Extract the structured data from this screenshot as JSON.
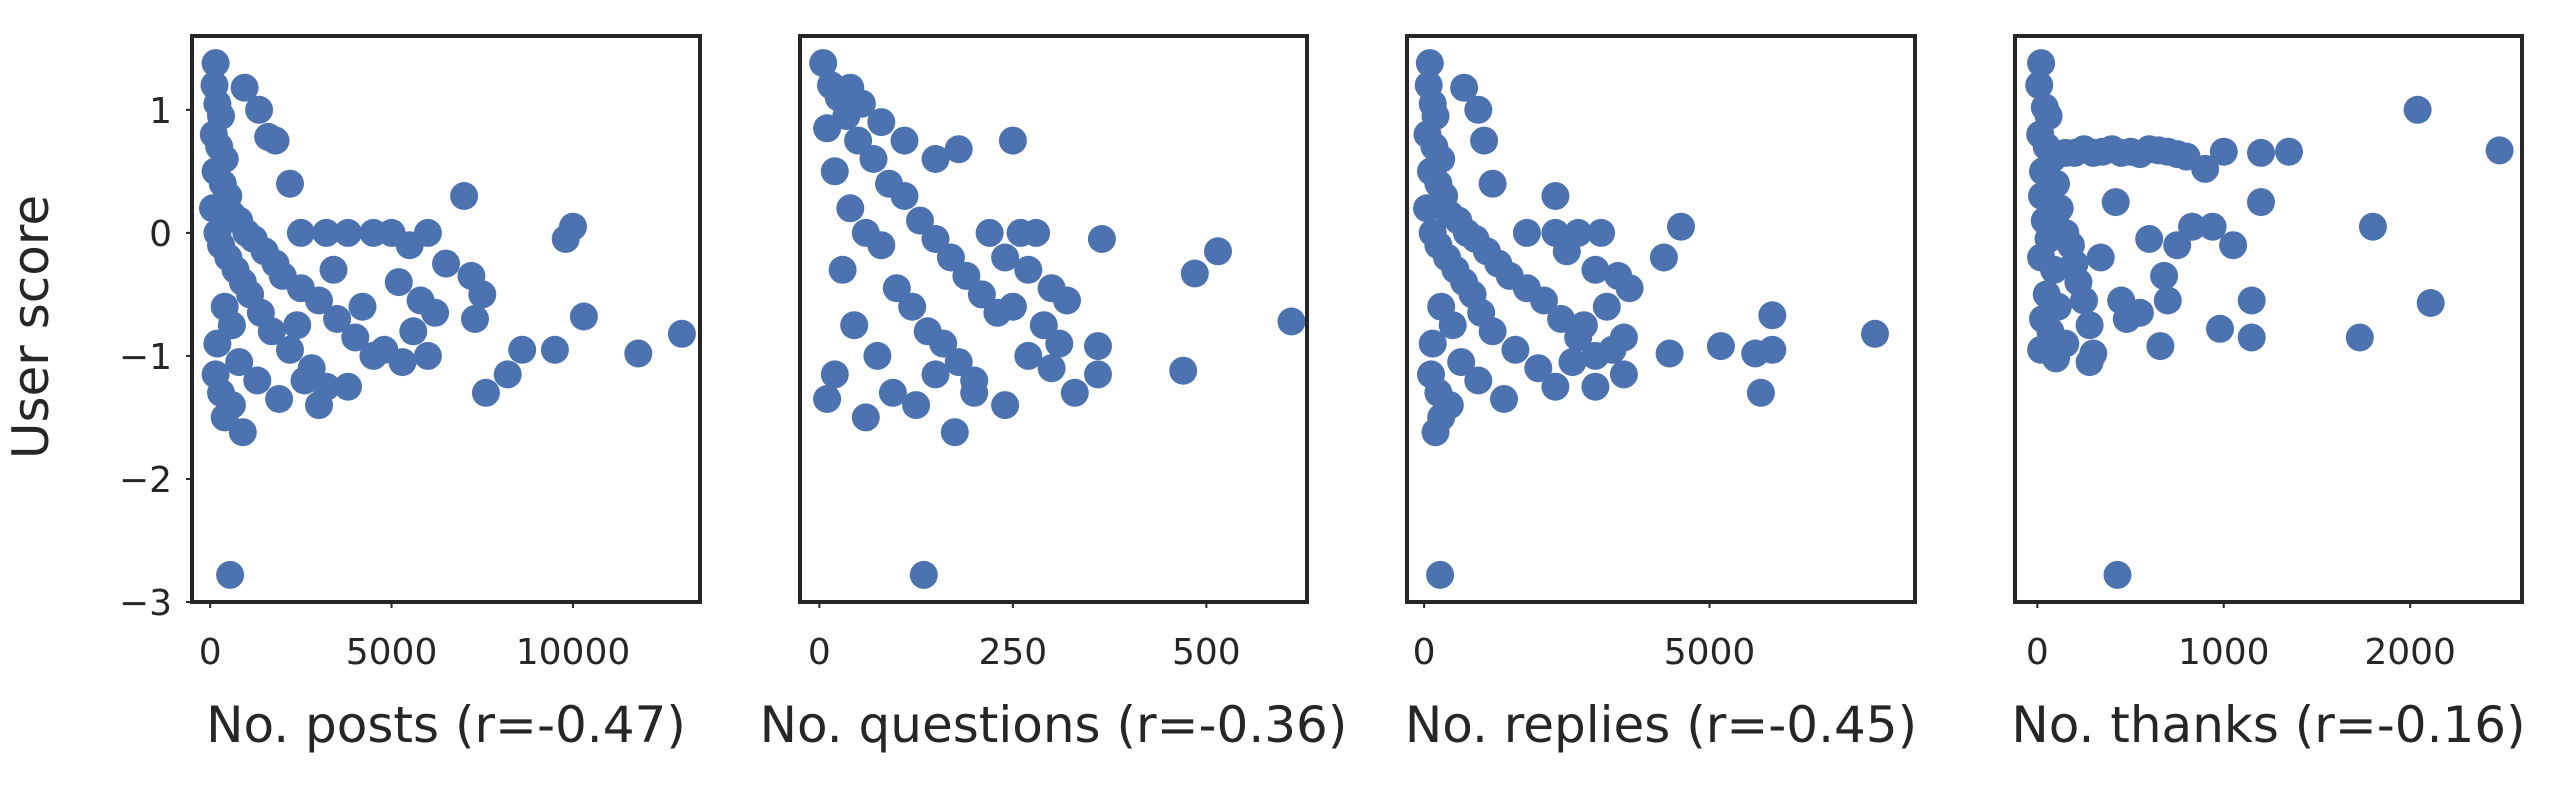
{
  "figure": {
    "ylabel": "User score"
  },
  "chart_data": [
    {
      "type": "scatter",
      "xlabel": "No. posts (r=-0.47)",
      "ylabel": "User score",
      "xlim": [
        -500,
        13500
      ],
      "ylim": [
        -3.0,
        1.6
      ],
      "xticks": [
        0,
        5000,
        10000
      ],
      "xticklabels": [
        "0",
        "5000",
        "10000"
      ],
      "yticks": [
        1,
        0,
        -1,
        -2,
        -3
      ],
      "yticklabels": [
        "1",
        "0",
        "−1",
        "−2",
        "−3"
      ],
      "grid": false,
      "color": "#4c72b0",
      "points": [
        [
          150,
          1.38
        ],
        [
          120,
          1.2
        ],
        [
          200,
          1.05
        ],
        [
          300,
          0.95
        ],
        [
          100,
          0.8
        ],
        [
          250,
          0.7
        ],
        [
          400,
          0.6
        ],
        [
          150,
          0.5
        ],
        [
          350,
          0.4
        ],
        [
          500,
          0.3
        ],
        [
          80,
          0.2
        ],
        [
          600,
          0.15
        ],
        [
          800,
          0.1
        ],
        [
          200,
          0.0
        ],
        [
          1000,
          0.0
        ],
        [
          1200,
          -0.05
        ],
        [
          300,
          -0.1
        ],
        [
          1500,
          -0.15
        ],
        [
          500,
          -0.2
        ],
        [
          1800,
          -0.25
        ],
        [
          700,
          -0.3
        ],
        [
          2000,
          -0.35
        ],
        [
          900,
          -0.4
        ],
        [
          2500,
          -0.45
        ],
        [
          1100,
          -0.5
        ],
        [
          3000,
          -0.55
        ],
        [
          400,
          -0.6
        ],
        [
          1400,
          -0.65
        ],
        [
          3500,
          -0.7
        ],
        [
          600,
          -0.75
        ],
        [
          1700,
          -0.8
        ],
        [
          4000,
          -0.85
        ],
        [
          200,
          -0.9
        ],
        [
          2200,
          -0.95
        ],
        [
          4500,
          -1.0
        ],
        [
          800,
          -1.05
        ],
        [
          2800,
          -1.1
        ],
        [
          150,
          -1.15
        ],
        [
          1300,
          -1.2
        ],
        [
          3200,
          -1.25
        ],
        [
          300,
          -1.3
        ],
        [
          1900,
          -1.35
        ],
        [
          600,
          -1.4
        ],
        [
          400,
          -1.5
        ],
        [
          900,
          -1.62
        ],
        [
          550,
          -2.78
        ],
        [
          950,
          1.18
        ],
        [
          1350,
          1.0
        ],
        [
          1600,
          0.78
        ],
        [
          1800,
          0.75
        ],
        [
          2200,
          0.4
        ],
        [
          2500,
          0.0
        ],
        [
          3200,
          0.0
        ],
        [
          3800,
          0.0
        ],
        [
          4500,
          0.0
        ],
        [
          5000,
          0.0
        ],
        [
          6000,
          0.0
        ],
        [
          7000,
          0.3
        ],
        [
          5500,
          -0.1
        ],
        [
          6500,
          -0.25
        ],
        [
          7200,
          -0.35
        ],
        [
          5200,
          -0.4
        ],
        [
          5800,
          -0.55
        ],
        [
          7500,
          -0.5
        ],
        [
          7300,
          -0.7
        ],
        [
          6200,
          -0.65
        ],
        [
          5600,
          -0.8
        ],
        [
          4800,
          -0.95
        ],
        [
          5300,
          -1.05
        ],
        [
          6000,
          -1.0
        ],
        [
          7600,
          -1.3
        ],
        [
          8200,
          -1.15
        ],
        [
          8600,
          -0.95
        ],
        [
          9500,
          -0.95
        ],
        [
          9800,
          -0.05
        ],
        [
          10000,
          0.05
        ],
        [
          10300,
          -0.68
        ],
        [
          11800,
          -0.98
        ],
        [
          13000,
          -0.82
        ],
        [
          3000,
          -1.4
        ],
        [
          3800,
          -1.25
        ],
        [
          2600,
          -1.2
        ],
        [
          4200,
          -0.6
        ],
        [
          3400,
          -0.3
        ],
        [
          2400,
          -0.75
        ]
      ]
    },
    {
      "type": "scatter",
      "xlabel": "No. questions (r=-0.36)",
      "xlim": [
        -25,
        630
      ],
      "ylim": [
        -3.0,
        1.6
      ],
      "xticks": [
        0,
        250,
        500
      ],
      "xticklabels": [
        "0",
        "250",
        "500"
      ],
      "grid": false,
      "color": "#4c72b0",
      "points": [
        [
          5,
          1.38
        ],
        [
          15,
          1.2
        ],
        [
          25,
          1.1
        ],
        [
          35,
          0.95
        ],
        [
          10,
          0.85
        ],
        [
          50,
          0.75
        ],
        [
          70,
          0.6
        ],
        [
          20,
          0.5
        ],
        [
          90,
          0.4
        ],
        [
          110,
          0.3
        ],
        [
          40,
          0.2
        ],
        [
          130,
          0.1
        ],
        [
          60,
          0.0
        ],
        [
          150,
          -0.05
        ],
        [
          80,
          -0.1
        ],
        [
          170,
          -0.2
        ],
        [
          30,
          -0.3
        ],
        [
          190,
          -0.35
        ],
        [
          100,
          -0.45
        ],
        [
          210,
          -0.5
        ],
        [
          120,
          -0.6
        ],
        [
          230,
          -0.65
        ],
        [
          45,
          -0.75
        ],
        [
          140,
          -0.8
        ],
        [
          160,
          -0.9
        ],
        [
          75,
          -1.0
        ],
        [
          180,
          -1.05
        ],
        [
          20,
          -1.15
        ],
        [
          200,
          -1.2
        ],
        [
          95,
          -1.3
        ],
        [
          10,
          -1.35
        ],
        [
          125,
          -1.4
        ],
        [
          60,
          -1.5
        ],
        [
          175,
          -1.62
        ],
        [
          135,
          -2.78
        ],
        [
          40,
          1.18
        ],
        [
          55,
          1.05
        ],
        [
          80,
          0.9
        ],
        [
          110,
          0.75
        ],
        [
          150,
          0.6
        ],
        [
          180,
          0.68
        ],
        [
          250,
          0.75
        ],
        [
          220,
          0.0
        ],
        [
          260,
          0.0
        ],
        [
          280,
          0.0
        ],
        [
          240,
          -0.2
        ],
        [
          270,
          -0.3
        ],
        [
          300,
          -0.45
        ],
        [
          320,
          -0.55
        ],
        [
          250,
          -0.6
        ],
        [
          290,
          -0.75
        ],
        [
          310,
          -0.9
        ],
        [
          270,
          -1.0
        ],
        [
          300,
          -1.1
        ],
        [
          330,
          -1.3
        ],
        [
          240,
          -1.4
        ],
        [
          360,
          -1.15
        ],
        [
          360,
          -0.92
        ],
        [
          365,
          -0.05
        ],
        [
          470,
          -1.12
        ],
        [
          485,
          -0.33
        ],
        [
          515,
          -0.15
        ],
        [
          610,
          -0.72
        ],
        [
          200,
          -1.3
        ],
        [
          150,
          -1.15
        ]
      ]
    },
    {
      "type": "scatter",
      "xlabel": "No. replies (r=-0.45)",
      "xlim": [
        -300,
        8600
      ],
      "ylim": [
        -3.0,
        1.6
      ],
      "xticks": [
        0,
        5000
      ],
      "xticklabels": [
        "0",
        "5000"
      ],
      "grid": false,
      "color": "#4c72b0",
      "points": [
        [
          100,
          1.38
        ],
        [
          80,
          1.2
        ],
        [
          150,
          1.05
        ],
        [
          200,
          0.95
        ],
        [
          60,
          0.8
        ],
        [
          180,
          0.7
        ],
        [
          300,
          0.6
        ],
        [
          120,
          0.5
        ],
        [
          250,
          0.4
        ],
        [
          350,
          0.3
        ],
        [
          50,
          0.2
        ],
        [
          450,
          0.15
        ],
        [
          600,
          0.1
        ],
        [
          150,
          0.0
        ],
        [
          750,
          0.0
        ],
        [
          900,
          -0.05
        ],
        [
          250,
          -0.1
        ],
        [
          1100,
          -0.15
        ],
        [
          400,
          -0.2
        ],
        [
          1300,
          -0.25
        ],
        [
          550,
          -0.3
        ],
        [
          1500,
          -0.35
        ],
        [
          700,
          -0.4
        ],
        [
          1800,
          -0.45
        ],
        [
          850,
          -0.5
        ],
        [
          2100,
          -0.55
        ],
        [
          300,
          -0.6
        ],
        [
          1000,
          -0.65
        ],
        [
          2400,
          -0.7
        ],
        [
          500,
          -0.75
        ],
        [
          1200,
          -0.8
        ],
        [
          2700,
          -0.85
        ],
        [
          150,
          -0.9
        ],
        [
          1600,
          -0.95
        ],
        [
          3000,
          -1.0
        ],
        [
          650,
          -1.05
        ],
        [
          2000,
          -1.1
        ],
        [
          120,
          -1.15
        ],
        [
          950,
          -1.2
        ],
        [
          2300,
          -1.25
        ],
        [
          250,
          -1.3
        ],
        [
          1400,
          -1.35
        ],
        [
          450,
          -1.4
        ],
        [
          300,
          -1.5
        ],
        [
          200,
          -1.62
        ],
        [
          280,
          -2.78
        ],
        [
          700,
          1.18
        ],
        [
          950,
          1.0
        ],
        [
          1050,
          0.75
        ],
        [
          1200,
          0.4
        ],
        [
          2300,
          0.3
        ],
        [
          1800,
          0.0
        ],
        [
          2300,
          0.0
        ],
        [
          2700,
          0.0
        ],
        [
          3100,
          0.0
        ],
        [
          2500,
          -0.15
        ],
        [
          3000,
          -0.3
        ],
        [
          3400,
          -0.35
        ],
        [
          3600,
          -0.45
        ],
        [
          3200,
          -0.6
        ],
        [
          2800,
          -0.75
        ],
        [
          3500,
          -0.85
        ],
        [
          3300,
          -0.95
        ],
        [
          2600,
          -1.05
        ],
        [
          3500,
          -1.15
        ],
        [
          3000,
          -1.25
        ],
        [
          4200,
          -0.2
        ],
        [
          4500,
          0.05
        ],
        [
          4300,
          -0.98
        ],
        [
          5200,
          -0.92
        ],
        [
          5800,
          -0.98
        ],
        [
          6100,
          -0.95
        ],
        [
          5900,
          -1.3
        ],
        [
          6100,
          -0.67
        ],
        [
          7900,
          -0.82
        ]
      ]
    },
    {
      "type": "scatter",
      "xlabel": "No. thanks (r=-0.16)",
      "xlim": [
        -120,
        2600
      ],
      "ylim": [
        -3.0,
        1.6
      ],
      "xticks": [
        0,
        1000,
        2000
      ],
      "xticklabels": [
        "0",
        "1000",
        "2000"
      ],
      "grid": false,
      "color": "#4c72b0",
      "points": [
        [
          20,
          1.38
        ],
        [
          10,
          1.2
        ],
        [
          40,
          1.02
        ],
        [
          60,
          0.95
        ],
        [
          15,
          0.8
        ],
        [
          50,
          0.7
        ],
        [
          80,
          0.6
        ],
        [
          30,
          0.5
        ],
        [
          100,
          0.4
        ],
        [
          25,
          0.3
        ],
        [
          120,
          0.2
        ],
        [
          40,
          0.1
        ],
        [
          150,
          0.0
        ],
        [
          60,
          -0.05
        ],
        [
          180,
          -0.1
        ],
        [
          20,
          -0.2
        ],
        [
          200,
          -0.25
        ],
        [
          90,
          -0.3
        ],
        [
          220,
          -0.4
        ],
        [
          50,
          -0.5
        ],
        [
          250,
          -0.55
        ],
        [
          110,
          -0.6
        ],
        [
          30,
          -0.7
        ],
        [
          280,
          -0.75
        ],
        [
          70,
          -0.8
        ],
        [
          150,
          -0.9
        ],
        [
          20,
          -0.95
        ],
        [
          300,
          -0.98
        ],
        [
          100,
          -1.02
        ],
        [
          280,
          -1.05
        ],
        [
          430,
          -2.78
        ],
        [
          150,
          0.65
        ],
        [
          200,
          0.65
        ],
        [
          250,
          0.68
        ],
        [
          300,
          0.65
        ],
        [
          350,
          0.66
        ],
        [
          400,
          0.68
        ],
        [
          450,
          0.65
        ],
        [
          500,
          0.66
        ],
        [
          550,
          0.64
        ],
        [
          600,
          0.68
        ],
        [
          650,
          0.67
        ],
        [
          700,
          0.66
        ],
        [
          750,
          0.64
        ],
        [
          800,
          0.62
        ],
        [
          900,
          0.52
        ],
        [
          1000,
          0.66
        ],
        [
          1200,
          0.65
        ],
        [
          1350,
          0.66
        ],
        [
          340,
          -0.2
        ],
        [
          420,
          0.25
        ],
        [
          450,
          -0.55
        ],
        [
          480,
          -0.7
        ],
        [
          550,
          -0.65
        ],
        [
          600,
          -0.05
        ],
        [
          680,
          -0.35
        ],
        [
          660,
          -0.92
        ],
        [
          700,
          -0.55
        ],
        [
          750,
          -0.1
        ],
        [
          830,
          0.05
        ],
        [
          940,
          0.05
        ],
        [
          980,
          -0.78
        ],
        [
          1050,
          -0.1
        ],
        [
          1150,
          -0.55
        ],
        [
          1200,
          0.25
        ],
        [
          1150,
          -0.85
        ],
        [
          1730,
          -0.85
        ],
        [
          1800,
          0.05
        ],
        [
          2040,
          1.0
        ],
        [
          2110,
          -0.57
        ],
        [
          2480,
          0.67
        ]
      ]
    }
  ]
}
